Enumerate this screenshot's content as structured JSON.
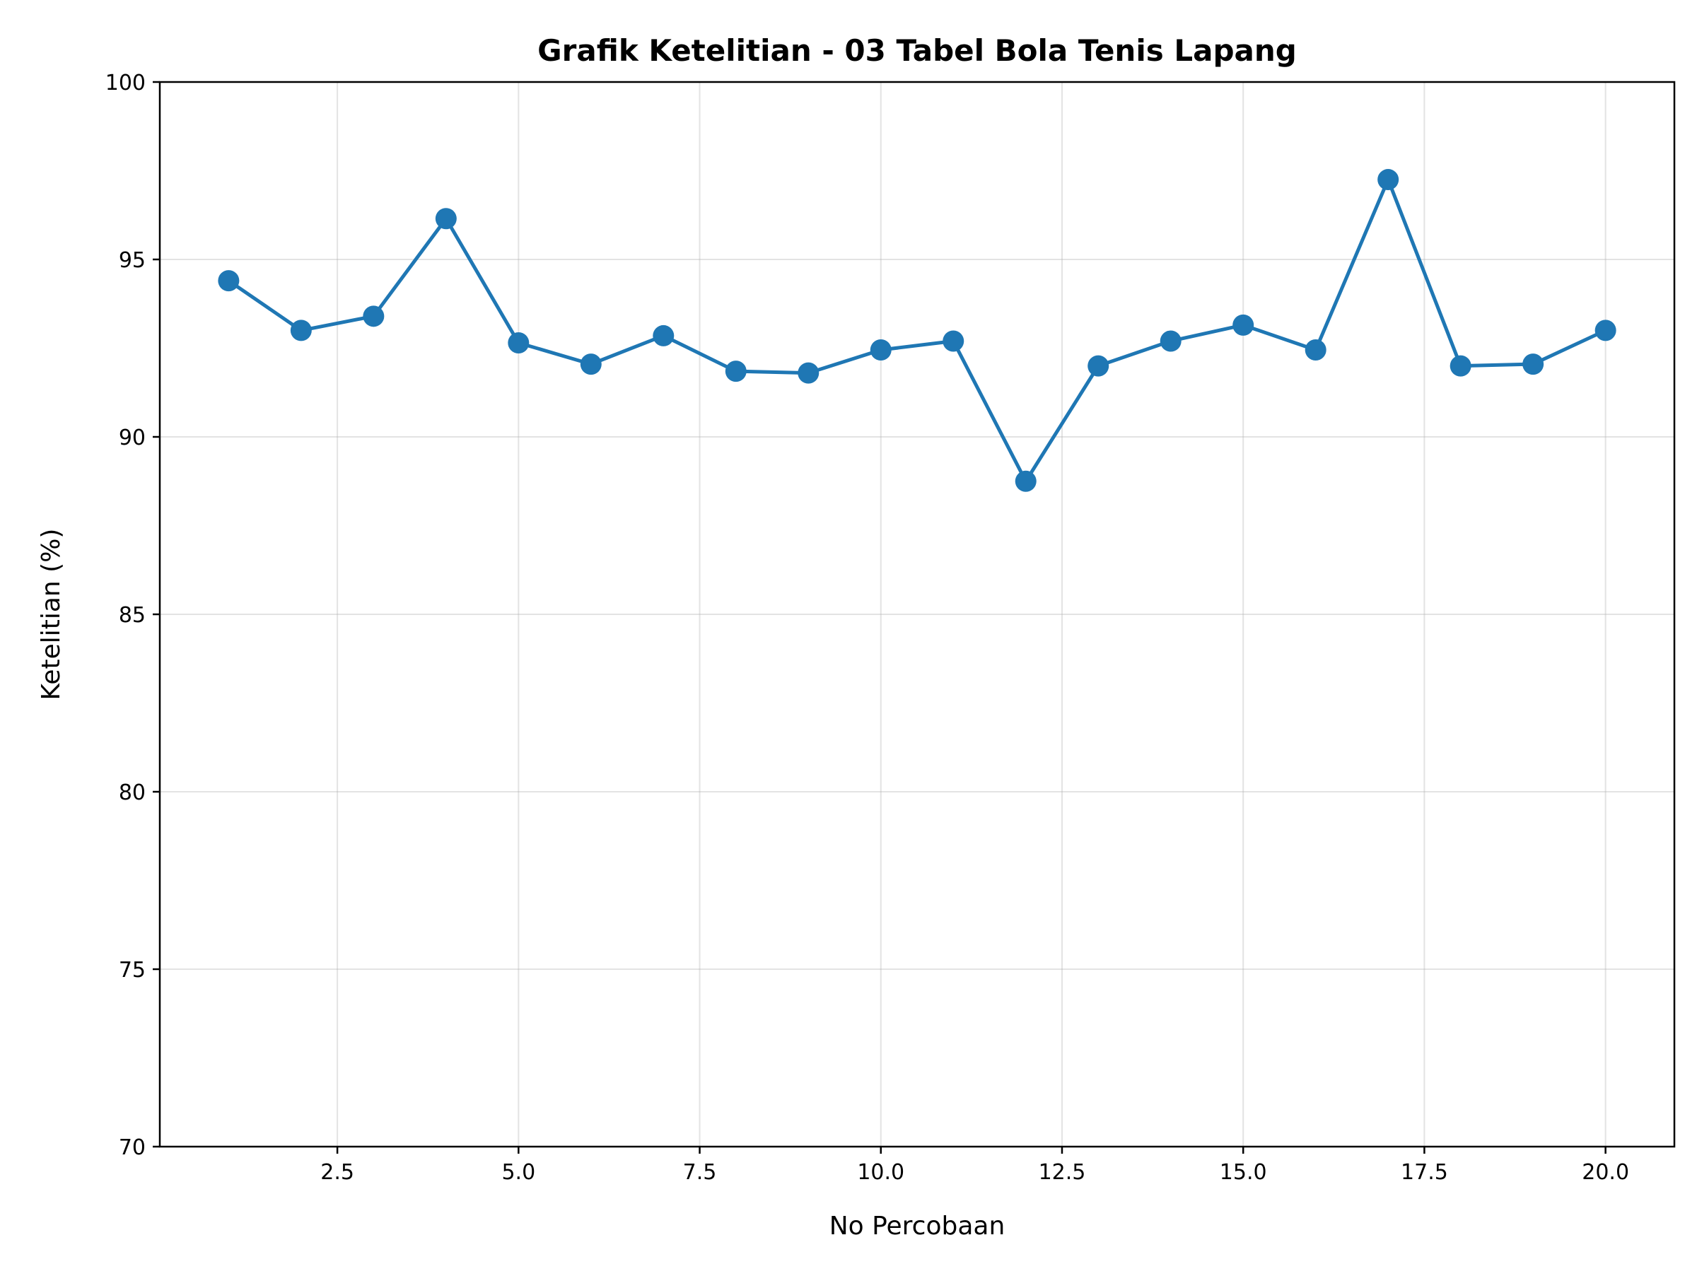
{
  "chart_data": {
    "type": "line",
    "title": "Grafik Ketelitian - 03 Tabel Bola Tenis Lapang",
    "xlabel": "No Percobaan",
    "ylabel": "Ketelitian (%)",
    "xlim": [
      0.05,
      20.95
    ],
    "ylim": [
      70,
      100
    ],
    "xticks": [
      2.5,
      5.0,
      7.5,
      10.0,
      12.5,
      15.0,
      17.5,
      20.0
    ],
    "xtick_labels": [
      "2.5",
      "5.0",
      "7.5",
      "10.0",
      "12.5",
      "15.0",
      "17.5",
      "20.0"
    ],
    "yticks": [
      70,
      75,
      80,
      85,
      90,
      95,
      100
    ],
    "ytick_labels": [
      "70",
      "75",
      "80",
      "85",
      "90",
      "95",
      "100"
    ],
    "grid": true,
    "color": "#1f77b4",
    "series": [
      {
        "x": [
          1,
          2,
          3,
          4,
          5,
          6,
          7,
          8,
          9,
          10,
          11,
          12,
          13,
          14,
          15,
          16,
          17,
          18,
          19,
          20
        ],
        "values": [
          94.4,
          93.0,
          93.4,
          96.15,
          92.65,
          92.05,
          92.85,
          91.85,
          91.8,
          92.45,
          92.7,
          88.75,
          92.0,
          92.7,
          93.15,
          92.45,
          97.25,
          92.0,
          92.05,
          93.0
        ]
      }
    ]
  }
}
